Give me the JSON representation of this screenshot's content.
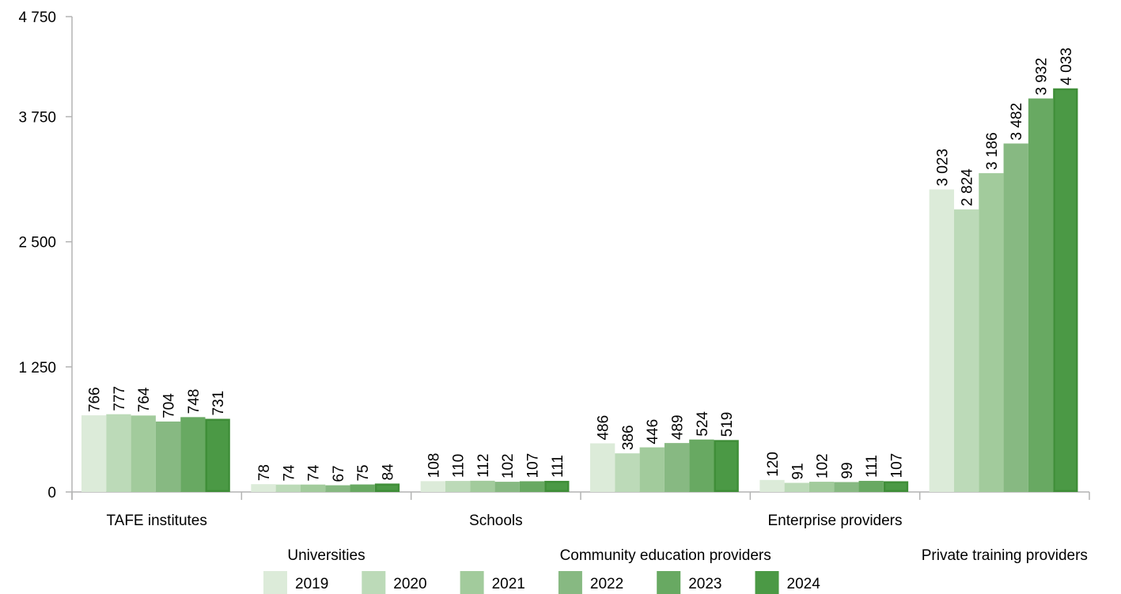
{
  "chart_data": {
    "type": "bar",
    "categories": [
      "TAFE institutes",
      "Universities",
      "Schools",
      "Community education providers",
      "Enterprise providers",
      "Private training providers"
    ],
    "series": [
      {
        "name": "2019",
        "values": [
          766,
          78,
          108,
          486,
          120,
          3023
        ]
      },
      {
        "name": "2020",
        "values": [
          777,
          74,
          110,
          386,
          91,
          2824
        ]
      },
      {
        "name": "2021",
        "values": [
          764,
          74,
          112,
          446,
          102,
          3186
        ]
      },
      {
        "name": "2022",
        "values": [
          704,
          67,
          102,
          489,
          99,
          3482
        ]
      },
      {
        "name": "2023",
        "values": [
          748,
          75,
          107,
          524,
          111,
          3932
        ]
      },
      {
        "name": "2024",
        "values": [
          731,
          84,
          111,
          519,
          107,
          4033
        ]
      }
    ],
    "value_labels": [
      [
        "766",
        "78",
        "108",
        "486",
        "120",
        "3 023"
      ],
      [
        "777",
        "74",
        "110",
        "386",
        "91",
        "2 824"
      ],
      [
        "764",
        "74",
        "112",
        "446",
        "102",
        "3 186"
      ],
      [
        "704",
        "67",
        "102",
        "489",
        "99",
        "3 482"
      ],
      [
        "748",
        "75",
        "107",
        "524",
        "111",
        "3 932"
      ],
      [
        "731",
        "84",
        "111",
        "519",
        "107",
        "4 033"
      ]
    ],
    "ylim": [
      0,
      4750
    ],
    "yticks": [
      0,
      1250,
      2500,
      3750,
      4750
    ],
    "ytick_labels": [
      "0",
      "1 250",
      "2 500",
      "3 750",
      "4 750"
    ],
    "grid": false,
    "legend_position": "bottom",
    "colors": [
      "#dcebd9",
      "#bcdab8",
      "#a2cb9c",
      "#87b982",
      "#68a962",
      "#4b9945"
    ],
    "highlight_stroke": "#3f8e38"
  }
}
